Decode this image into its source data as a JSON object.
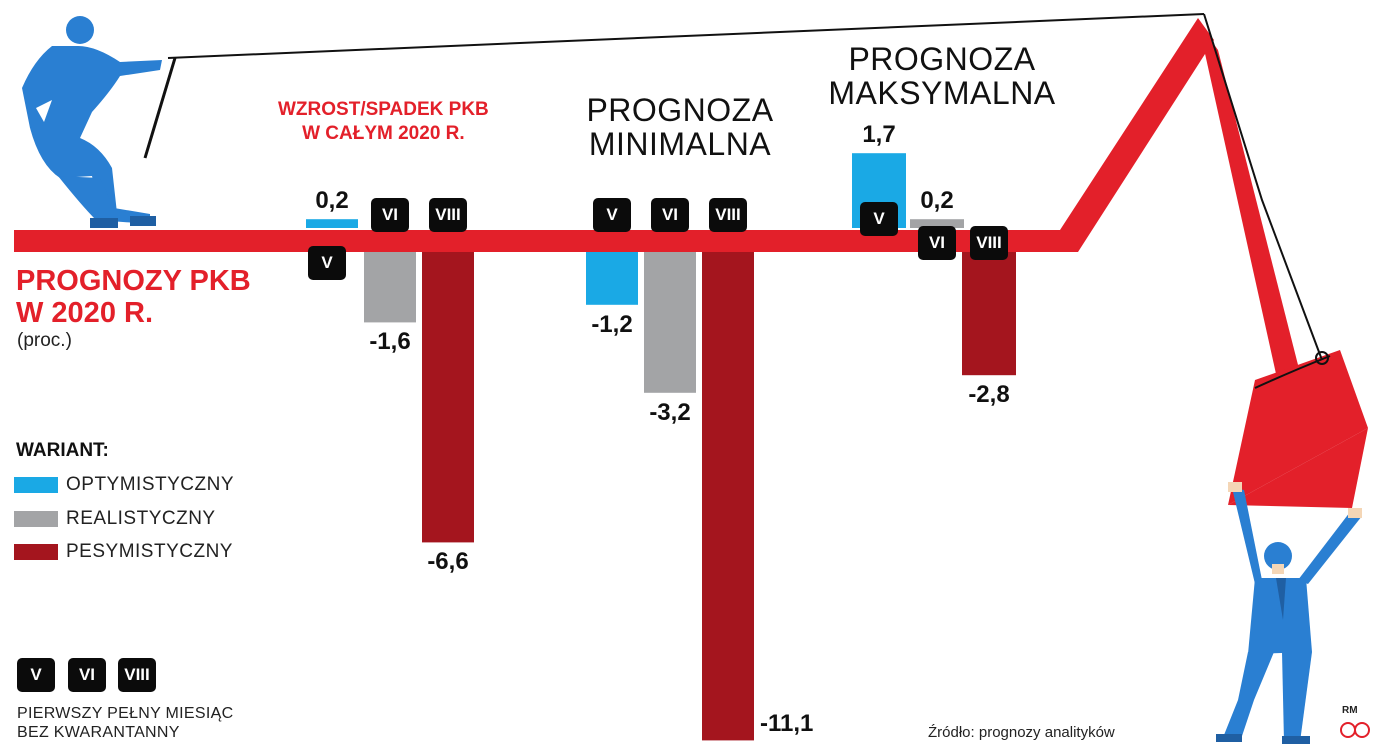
{
  "headline": {
    "line1": "PROGNOZY PKB",
    "line2": "W 2020 R.",
    "unit": "(proc.)"
  },
  "annual_note": {
    "line1": "WZROST/SPADEK PKB",
    "line2": "W CAŁYM 2020 R."
  },
  "legend": {
    "title": "WARIANT:",
    "items": [
      {
        "label": "OPTYMISTYCZNY",
        "color": "#1aa9e5"
      },
      {
        "label": "REALISTYCZNY",
        "color": "#a3a4a6"
      },
      {
        "label": "PESYMISTYCZNY",
        "color": "#a4151e"
      }
    ]
  },
  "month_key": {
    "badges": [
      "V",
      "VI",
      "VIII"
    ],
    "line1": "PIERWSZY PEŁNY MIESIĄC",
    "line2": "BEZ KWARANTANNY"
  },
  "source": "Źródło: prognozy analityków",
  "credit": "RM",
  "colors": {
    "accent_red": "#e3202a",
    "optimistic": "#1aa9e5",
    "realistic": "#a3a4a6",
    "pessimistic": "#a4151e",
    "figure_blue": "#2a7fd2"
  },
  "chart_data": {
    "type": "bar",
    "ylabel": "(proc.)",
    "categories": [
      "V",
      "VI",
      "VIII"
    ],
    "groups": [
      {
        "title": "",
        "bars": [
          {
            "variant": "OPTYMISTYCZNY",
            "month": "V",
            "value": 0.2,
            "label": "0,2"
          },
          {
            "variant": "REALISTYCZNY",
            "month": "VI",
            "value": -1.6,
            "label": "-1,6"
          },
          {
            "variant": "PESYMISTYCZNY",
            "month": "VIII",
            "value": -6.6,
            "label": "-6,6"
          }
        ]
      },
      {
        "title_line1": "PROGNOZA",
        "title_line2": "MINIMALNA",
        "bars": [
          {
            "variant": "OPTYMISTYCZNY",
            "month": "V",
            "value": -1.2,
            "label": "-1,2"
          },
          {
            "variant": "REALISTYCZNY",
            "month": "VI",
            "value": -3.2,
            "label": "-3,2"
          },
          {
            "variant": "PESYMISTYCZNY",
            "month": "VIII",
            "value": -11.1,
            "label": "-11,1"
          }
        ]
      },
      {
        "title_line1": "PROGNOZA",
        "title_line2": "MAKSYMALNA",
        "bars": [
          {
            "variant": "OPTYMISTYCZNY",
            "month": "V",
            "value": 1.7,
            "label": "1,7"
          },
          {
            "variant": "REALISTYCZNY",
            "month": "VI",
            "value": 0.2,
            "label": "0,2"
          },
          {
            "variant": "PESYMISTYCZNY",
            "month": "VIII",
            "value": -2.8,
            "label": "-2,8"
          }
        ]
      }
    ]
  }
}
